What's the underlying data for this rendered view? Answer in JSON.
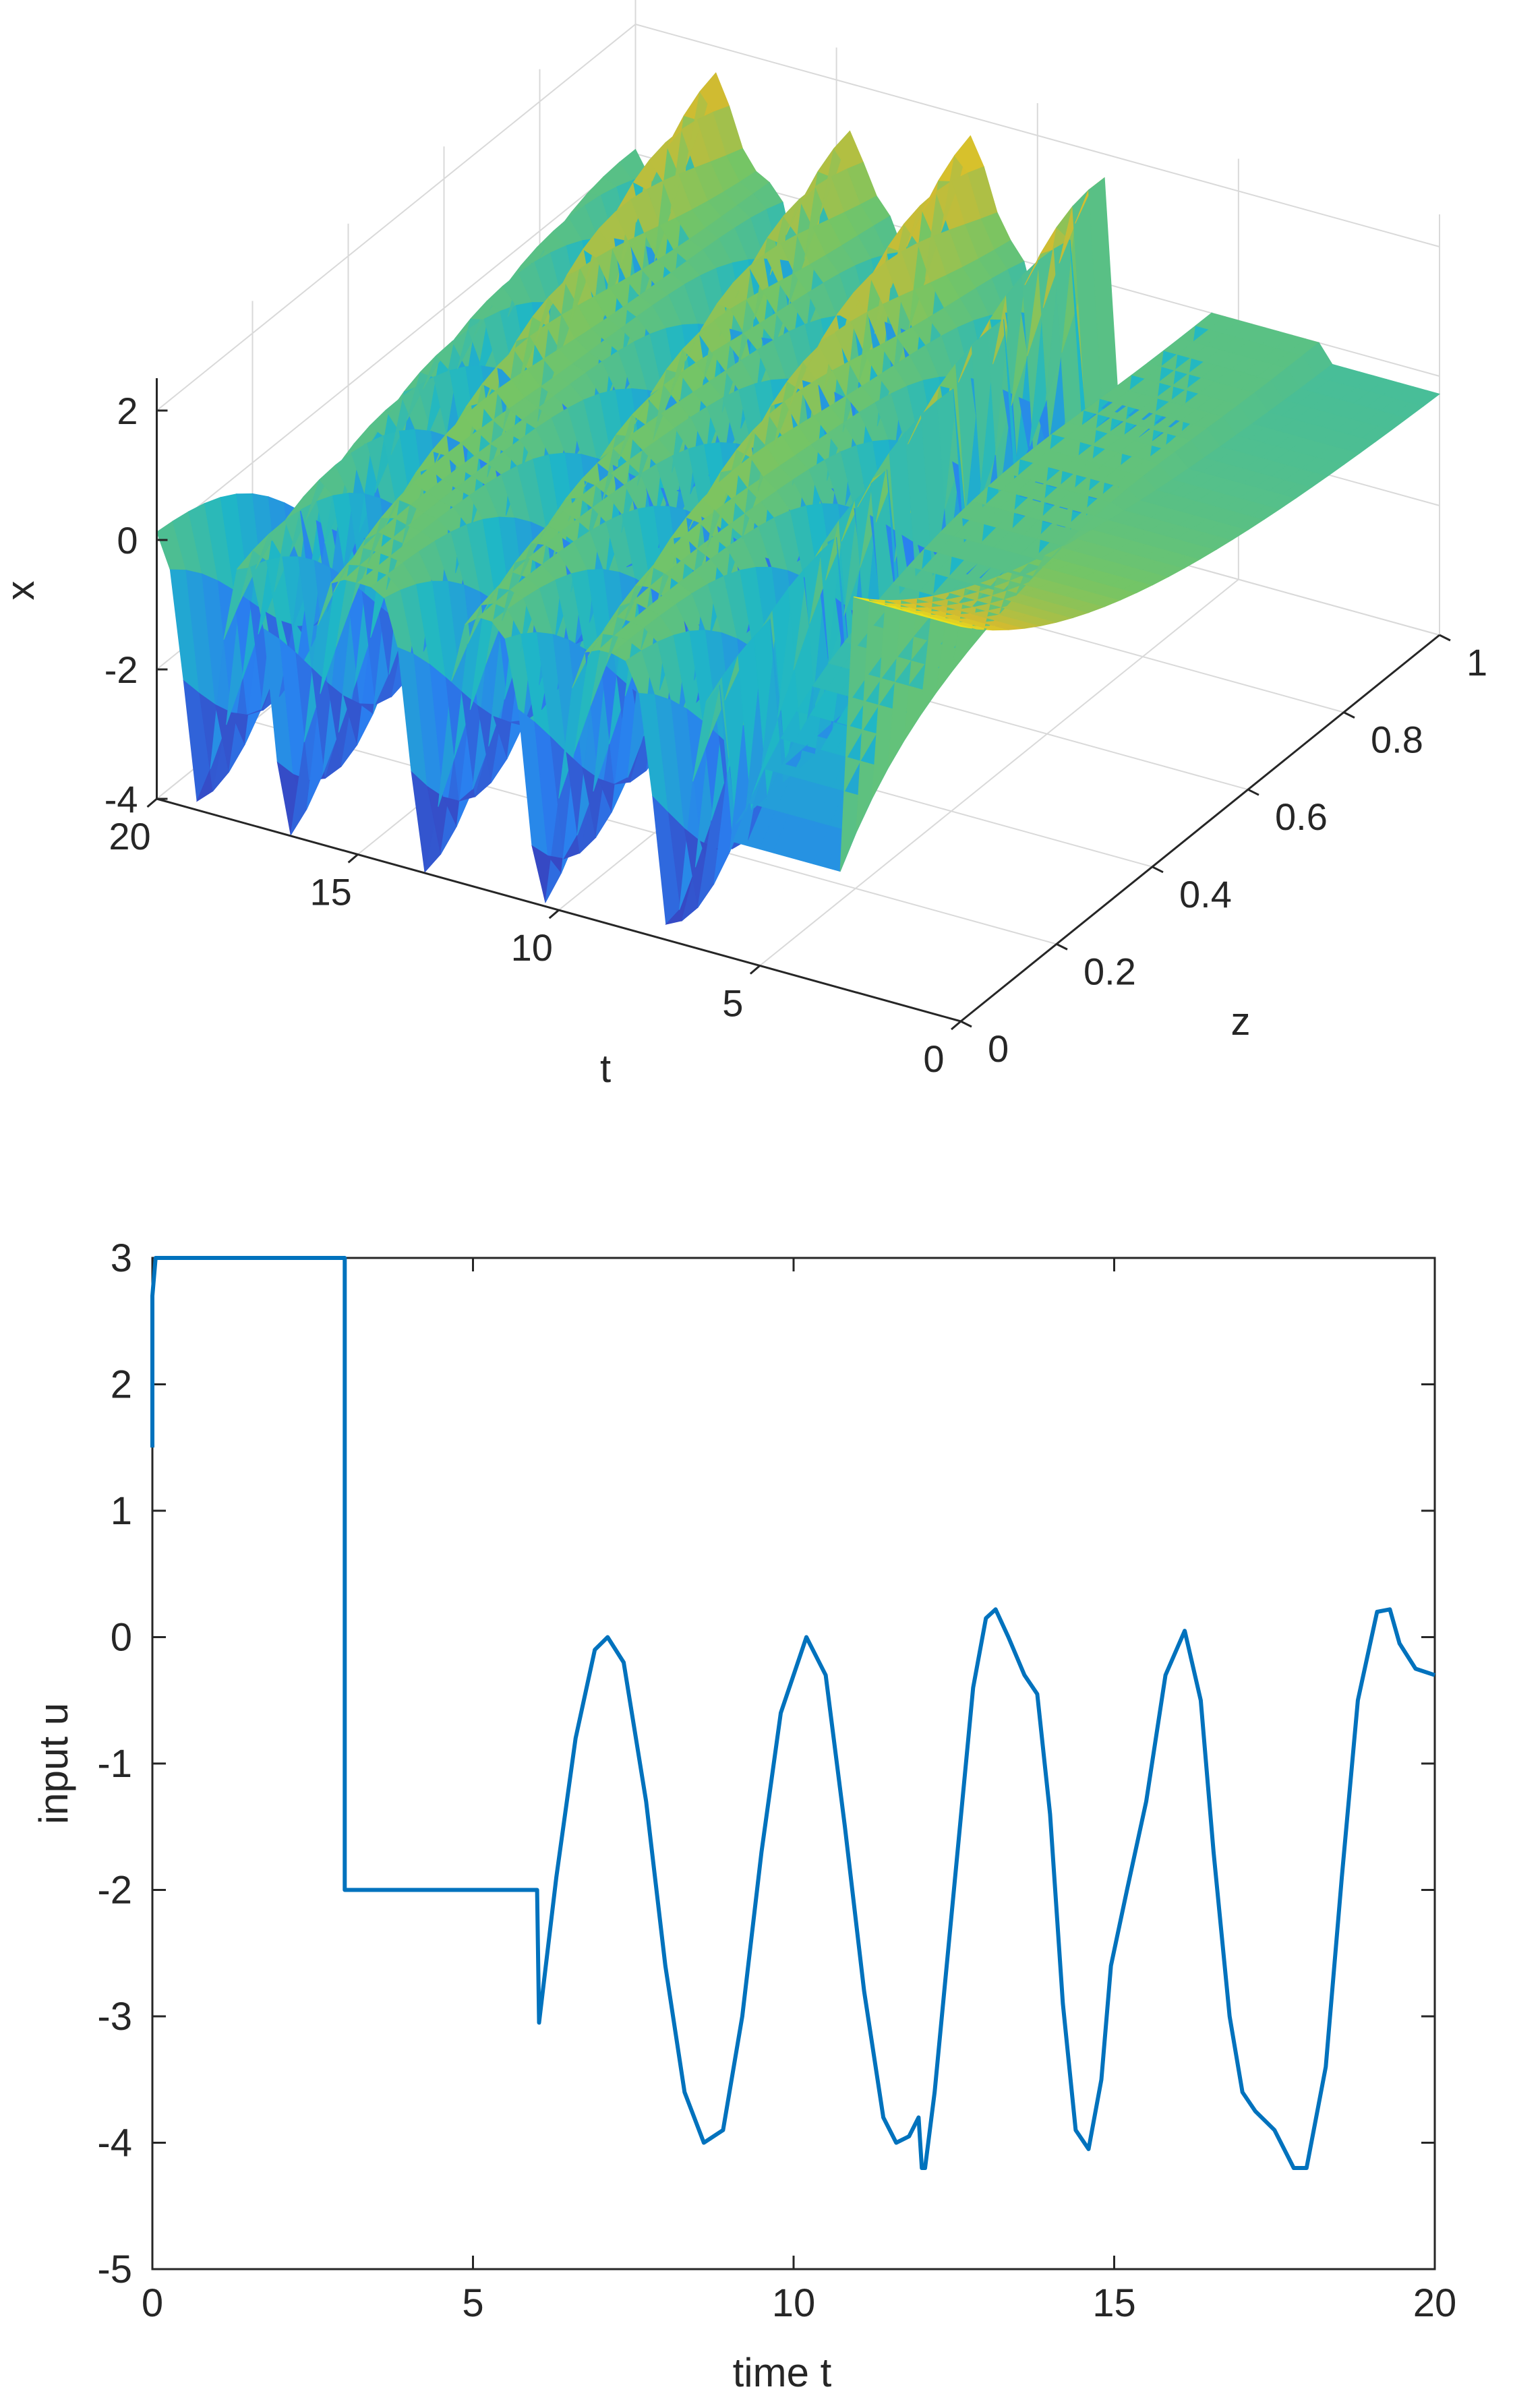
{
  "chart_data": [
    {
      "type": "surface",
      "xlabel": "t",
      "ylabel": "z",
      "zlabel": "x",
      "t_ticks": [
        "0",
        "5",
        "10",
        "15",
        "20"
      ],
      "t_tick_values": [
        0,
        5,
        10,
        15,
        20
      ],
      "z_ticks": [
        "0",
        "0.2",
        "0.4",
        "0.6",
        "0.8",
        "1"
      ],
      "z_tick_values": [
        0,
        0.2,
        0.4,
        0.6,
        0.8,
        1
      ],
      "x_ticks": [
        "-4",
        "-2",
        "0",
        "2"
      ],
      "x_tick_values": [
        -4,
        -2,
        0,
        2
      ],
      "t_range": [
        0,
        20
      ],
      "z_range": [
        0,
        1
      ],
      "x_range": [
        -4,
        2.5
      ],
      "grid": true,
      "colormap": "parula",
      "description_values": {
        "boundary_minima_t": [
          7.2,
          10.4,
          13.3,
          16.7,
          18.9
        ],
        "boundary_min_value": -4
      }
    },
    {
      "type": "line",
      "xlabel": "time t",
      "ylabel": "input u",
      "xlim": [
        0,
        20
      ],
      "ylim": [
        -5,
        3
      ],
      "x_ticks": [
        "0",
        "5",
        "10",
        "15",
        "20"
      ],
      "x_tick_values": [
        0,
        5,
        10,
        15,
        20
      ],
      "y_ticks": [
        "-5",
        "-4",
        "-3",
        "-2",
        "-1",
        "0",
        "1",
        "2",
        "3"
      ],
      "y_tick_values": [
        -5,
        -4,
        -3,
        -2,
        -1,
        0,
        1,
        2,
        3
      ],
      "grid": false,
      "series": [
        {
          "color": "#0072BD",
          "x": [
            0,
            0,
            0.05,
            3.0,
            3.0,
            6.0,
            6.03,
            6.3,
            6.6,
            6.9,
            7.1,
            7.35,
            7.7,
            8.0,
            8.3,
            8.6,
            8.9,
            9.2,
            9.5,
            9.8,
            10.2,
            10.5,
            10.8,
            11.1,
            11.4,
            11.6,
            11.8,
            11.95,
            12.0,
            12.05,
            12.2,
            12.5,
            12.8,
            13.0,
            13.15,
            13.35,
            13.6,
            13.8,
            14.0,
            14.2,
            14.4,
            14.6,
            14.8,
            14.95,
            15.2,
            15.5,
            15.8,
            16.1,
            16.35,
            16.55,
            16.8,
            17.0,
            17.2,
            17.5,
            17.8,
            18.0,
            18.3,
            18.55,
            18.8,
            19.1,
            19.3,
            19.45,
            19.7,
            20.0
          ],
          "y": [
            1.5,
            2.7,
            3.0,
            3.0,
            -2.0,
            -2.0,
            -3.05,
            -1.9,
            -0.8,
            -0.1,
            0.0,
            -0.2,
            -1.3,
            -2.6,
            -3.6,
            -4.0,
            -3.9,
            -3.0,
            -1.7,
            -0.6,
            0.0,
            -0.3,
            -1.5,
            -2.8,
            -3.8,
            -4.0,
            -3.95,
            -3.8,
            -4.2,
            -4.2,
            -3.6,
            -2.0,
            -0.4,
            0.15,
            0.22,
            0.0,
            -0.3,
            -0.45,
            -1.4,
            -2.9,
            -3.9,
            -4.05,
            -3.5,
            -2.6,
            -2.0,
            -1.3,
            -0.3,
            0.05,
            -0.5,
            -1.7,
            -3.0,
            -3.6,
            -3.75,
            -3.9,
            -4.2,
            -4.2,
            -3.4,
            -1.9,
            -0.5,
            0.2,
            0.22,
            -0.05,
            -0.25,
            -0.3
          ]
        }
      ]
    }
  ]
}
